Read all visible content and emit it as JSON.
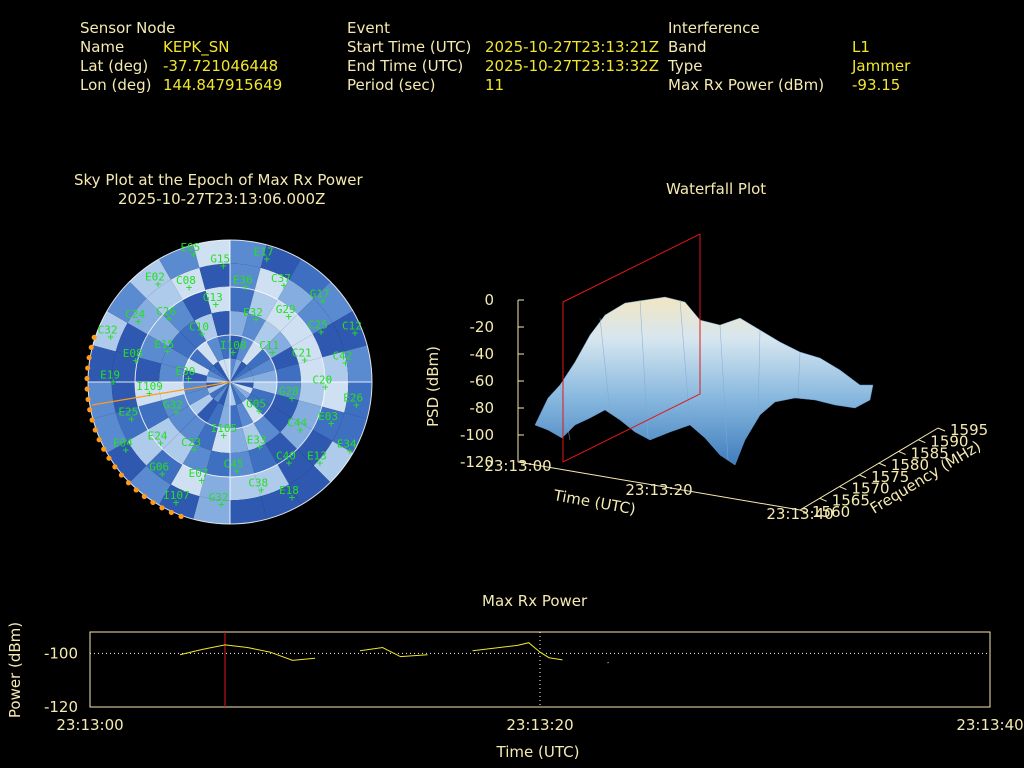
{
  "header": {
    "sensor": {
      "title": "Sensor Node",
      "name_label": "Name",
      "name": "KEPK_SN",
      "lat_label": "Lat (deg)",
      "lat": "-37.721046448",
      "lon_label": "Lon (deg)",
      "lon": "144.847915649"
    },
    "event": {
      "title": "Event",
      "start_label": "Start Time (UTC)",
      "start": "2025-10-27T23:13:21Z",
      "end_label": "End Time (UTC)",
      "end": "2025-10-27T23:13:32Z",
      "period_label": "Period (sec)",
      "period": "11"
    },
    "interference": {
      "title": "Interference",
      "band_label": "Band",
      "band": "L1",
      "type_label": "Type",
      "type": "Jammer",
      "maxrx_label": "Max Rx Power (dBm)",
      "maxrx": "-93.15"
    }
  },
  "skyplot": {
    "title": "Sky Plot at the Epoch of Max Rx Power",
    "subtitle": "2025-10-27T23:13:06.000Z",
    "satellites": [
      "I108",
      "G05",
      "E30",
      "C11",
      "I105",
      "C10",
      "G28",
      "G32",
      "E32",
      "E33",
      "E15",
      "C21",
      "C23",
      "G13",
      "C44",
      "I109",
      "G29",
      "C45",
      "C26",
      "C20",
      "E24",
      "E36",
      "C40",
      "E08",
      "C25",
      "E07",
      "C08",
      "E03",
      "E25",
      "C37",
      "C38",
      "C24",
      "C42",
      "G06",
      "G15",
      "E13",
      "E19",
      "G17",
      "G32",
      "E02",
      "E26",
      "E04",
      "E17",
      "E18",
      "C32",
      "C12",
      "I107",
      "E05",
      "E34"
    ]
  },
  "waterfall": {
    "title": "Waterfall Plot",
    "psd_label": "PSD (dBm)",
    "psd_ticks": [
      "0",
      "-20",
      "-40",
      "-60",
      "-80",
      "-100",
      "-120"
    ],
    "time_label": "Time (UTC)",
    "time_ticks": [
      "23:13:00",
      "23:13:20",
      "23:13:40"
    ],
    "freq_label": "Frequency (MHz)",
    "freq_ticks": [
      "1560",
      "1565",
      "1570",
      "1575",
      "1580",
      "1585",
      "1590",
      "1595"
    ]
  },
  "chart_data": [
    {
      "type": "line",
      "title": "Max Rx Power",
      "xlabel": "Time (UTC)",
      "ylabel": "Power (dBm)",
      "x_ticks": [
        "23:13:00",
        "23:13:20",
        "23:13:40"
      ],
      "y_ticks": [
        "-100",
        "-120"
      ],
      "xlim": [
        0,
        40
      ],
      "ylim": [
        -120,
        -92
      ],
      "marker_time": 6,
      "segments": [
        [
          [
            4,
            -100.5
          ],
          [
            5,
            -98.5
          ],
          [
            6,
            -96.8
          ],
          [
            7,
            -97.8
          ],
          [
            8,
            -99.5
          ],
          [
            9,
            -102.6
          ],
          [
            10,
            -101.8
          ]
        ],
        [
          [
            12,
            -99.0
          ],
          [
            13,
            -97.8
          ],
          [
            13.8,
            -101.2
          ],
          [
            15,
            -100.5
          ]
        ],
        [
          [
            17,
            -99.0
          ],
          [
            19,
            -97.0
          ],
          [
            19.5,
            -96.0
          ],
          [
            20,
            -99.5
          ],
          [
            20.4,
            -101.6
          ],
          [
            21,
            -102.4
          ]
        ],
        [
          [
            23,
            -103.5
          ],
          [
            23.05,
            -103.4
          ]
        ]
      ],
      "grid": "dotted"
    }
  ]
}
